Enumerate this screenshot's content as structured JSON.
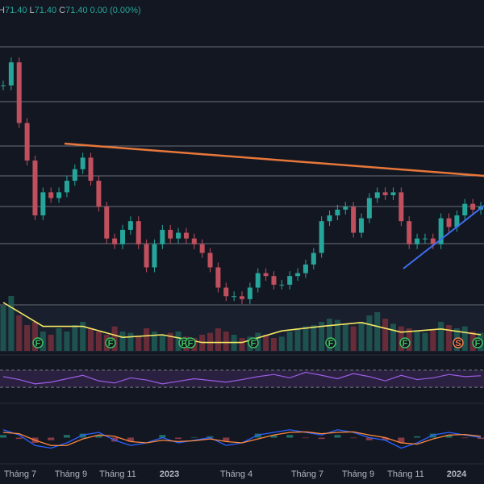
{
  "header": {
    "ohlc": [
      {
        "key": "H",
        "value": "71.40"
      },
      {
        "key": "L",
        "value": "71.40"
      },
      {
        "key": "C",
        "value": "71.40"
      }
    ],
    "change": "0.00 (0.00%)"
  },
  "chart_data": {
    "type": "candlestick",
    "ylim": [
      0,
      100
    ],
    "closes": [
      76,
      84,
      63,
      50,
      31,
      39,
      37,
      39,
      43,
      47,
      51,
      43,
      34,
      23,
      21,
      26,
      29,
      21,
      13,
      21,
      26,
      23,
      25,
      23,
      21,
      18,
      13,
      6,
      3,
      3,
      2,
      6,
      11,
      10,
      7,
      7,
      10,
      11,
      14,
      18,
      29,
      31,
      33,
      34,
      25,
      30,
      37,
      39,
      38,
      39,
      29,
      21,
      23,
      23,
      21,
      30,
      27,
      31,
      35,
      33,
      34
    ],
    "volume": {
      "ylim": [
        0,
        100
      ],
      "values": [
        70,
        85,
        55,
        40,
        45,
        30,
        25,
        35,
        30,
        40,
        45,
        35,
        30,
        25,
        38,
        30,
        28,
        22,
        35,
        30,
        25,
        28,
        30,
        22,
        20,
        25,
        28,
        35,
        30,
        25,
        20,
        22,
        28,
        25,
        20,
        22,
        30,
        35,
        38,
        40,
        45,
        50,
        48,
        42,
        38,
        45,
        55,
        60,
        50,
        42,
        38,
        35,
        30,
        28,
        32,
        45,
        40,
        35,
        38,
        30,
        28
      ],
      "ma": [
        75,
        38,
        38,
        21,
        25,
        13,
        13,
        31,
        38,
        44,
        29,
        34,
        25
      ]
    },
    "rsi": {
      "ylim": [
        0,
        100
      ],
      "levels": [
        70,
        30
      ],
      "values": [
        55,
        48,
        38,
        42,
        50,
        58,
        45,
        40,
        52,
        47,
        38,
        44,
        50,
        46,
        42,
        48,
        55,
        60,
        52,
        65,
        58,
        50,
        62,
        55,
        45,
        58,
        48,
        52,
        60,
        55,
        57
      ]
    },
    "macd": {
      "ylim": [
        -1,
        1
      ],
      "macd": [
        0.3,
        0.1,
        -0.3,
        -0.4,
        -0.2,
        0.1,
        0.2,
        -0.1,
        -0.3,
        -0.2,
        0.0,
        -0.2,
        -0.1,
        0.0,
        -0.3,
        -0.2,
        0.1,
        0.2,
        0.3,
        0.2,
        0.1,
        0.3,
        0.2,
        0.0,
        -0.1,
        -0.4,
        -0.2,
        0.1,
        0.2,
        0.1,
        0.0
      ],
      "signal": [
        0.2,
        0.15,
        -0.1,
        -0.3,
        -0.3,
        -0.05,
        0.1,
        0.05,
        -0.15,
        -0.2,
        -0.1,
        -0.15,
        -0.12,
        -0.05,
        -0.15,
        -0.2,
        -0.05,
        0.1,
        0.2,
        0.22,
        0.15,
        0.2,
        0.22,
        0.1,
        0.0,
        -0.2,
        -0.25,
        -0.05,
        0.1,
        0.12,
        0.05
      ],
      "histogram": [
        0.1,
        -0.05,
        -0.2,
        -0.1,
        0.1,
        0.15,
        0.1,
        -0.15,
        -0.15,
        0.0,
        0.1,
        -0.05,
        0.02,
        0.05,
        -0.15,
        0.0,
        0.15,
        0.1,
        0.1,
        -0.02,
        -0.05,
        0.1,
        -0.02,
        -0.1,
        -0.1,
        -0.2,
        0.05,
        0.15,
        0.1,
        -0.02,
        -0.05
      ]
    },
    "events": [
      "F",
      "F",
      "F",
      "F",
      "F",
      "F",
      "F",
      "S",
      "F"
    ],
    "x_labels": [
      "Tháng 7",
      "Tháng 9",
      "Tháng 11",
      "2023",
      "Tháng 4",
      "Tháng 7",
      "Tháng 9",
      "Tháng 11",
      "2024"
    ]
  }
}
